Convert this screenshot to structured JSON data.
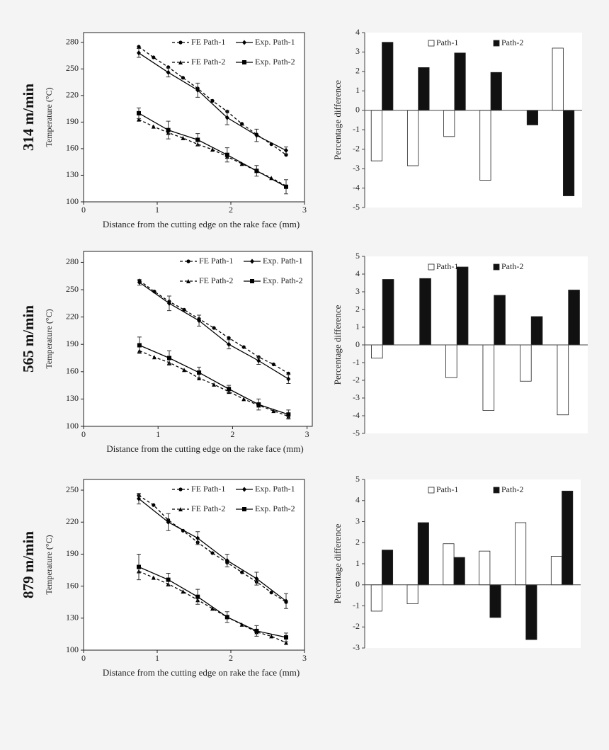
{
  "chart_data": [
    {
      "type": "line",
      "title": "314 m/min",
      "xlabel": "Distance from the cutting edge on the rake face (mm)",
      "ylabel": "Temperature (°C)",
      "xlim": [
        0,
        3
      ],
      "xticks": [
        0,
        1,
        2,
        3
      ],
      "ylim": [
        100,
        291
      ],
      "yticks": [
        100,
        130,
        160,
        190,
        220,
        250,
        280
      ],
      "series": [
        {
          "name": "FE Path-1",
          "color": "#000000",
          "line_style": "dashed",
          "marker": "circle",
          "x": [
            0.75,
            0.95,
            1.15,
            1.35,
            1.55,
            1.75,
            1.95,
            2.15,
            2.35,
            2.55,
            2.75
          ],
          "values": [
            275,
            263,
            252,
            240,
            228,
            214,
            202,
            188,
            176,
            165,
            153
          ]
        },
        {
          "name": "Exp. Path-1",
          "color": "#000000",
          "line_style": "solid",
          "marker": "diamond",
          "x": [
            0.75,
            1.15,
            1.55,
            1.95,
            2.35,
            2.75
          ],
          "values": [
            268,
            246,
            226,
            195,
            175,
            158
          ],
          "errors": [
            5,
            5,
            8,
            8,
            7,
            4
          ]
        },
        {
          "name": "FE Path-2",
          "color": "#000000",
          "line_style": "dashed",
          "marker": "triangle",
          "x": [
            0.75,
            0.95,
            1.15,
            1.35,
            1.55,
            1.75,
            1.95,
            2.15,
            2.35,
            2.55,
            2.75
          ],
          "values": [
            193,
            185,
            178,
            172,
            165,
            159,
            151,
            143,
            135,
            127,
            118
          ]
        },
        {
          "name": "Exp. Path-2",
          "color": "#000000",
          "line_style": "solid",
          "marker": "square",
          "x": [
            0.75,
            1.15,
            1.55,
            1.95,
            2.35,
            2.75
          ],
          "values": [
            200,
            181,
            170,
            153,
            135,
            117
          ],
          "errors": [
            6,
            10,
            7,
            8,
            6,
            8
          ]
        }
      ]
    },
    {
      "type": "bar",
      "ylabel": "Percentage difference",
      "ylim": [
        -5,
        4
      ],
      "yticks": [
        -5,
        -4,
        -3,
        -2,
        -1,
        0,
        1,
        2,
        3,
        4
      ],
      "series": [
        {
          "name": "Path-1",
          "color": "#ffffff",
          "values": [
            -2.6,
            -2.85,
            -1.35,
            -3.6,
            0,
            3.2
          ]
        },
        {
          "name": "Path-2",
          "color": "#111111",
          "values": [
            3.5,
            2.2,
            2.95,
            1.95,
            -0.75,
            -4.4
          ]
        }
      ]
    },
    {
      "type": "line",
      "title": "565 m/min",
      "xlabel": "Distance from the cutting edge on the rake face (mm)",
      "ylabel": "Temperature (°C)",
      "xlim": [
        0,
        3.07
      ],
      "xticks": [
        0,
        1,
        2,
        3
      ],
      "ylim": [
        100,
        292
      ],
      "yticks": [
        100,
        130,
        160,
        190,
        220,
        250,
        280
      ],
      "series": [
        {
          "name": "FE Path-1",
          "color": "#000000",
          "line_style": "dashed",
          "marker": "circle",
          "x": [
            0.75,
            0.95,
            1.15,
            1.35,
            1.55,
            1.75,
            1.95,
            2.15,
            2.35,
            2.55,
            2.75
          ],
          "values": [
            260,
            248,
            237,
            228,
            218,
            208,
            197,
            187,
            176,
            168,
            158
          ]
        },
        {
          "name": "Exp. Path-1",
          "color": "#000000",
          "line_style": "solid",
          "marker": "diamond",
          "x": [
            0.75,
            1.15,
            1.55,
            1.95,
            2.35,
            2.75
          ],
          "values": [
            258,
            235,
            216,
            190,
            172,
            152
          ],
          "errors": [
            3,
            8,
            6,
            5,
            4,
            5
          ]
        },
        {
          "name": "FE Path-2",
          "color": "#000000",
          "line_style": "dashed",
          "marker": "triangle",
          "x": [
            0.75,
            0.95,
            1.15,
            1.35,
            1.55,
            1.75,
            1.95,
            2.15,
            2.35,
            2.55,
            2.75
          ],
          "values": [
            183,
            176,
            170,
            162,
            153,
            146,
            138,
            130,
            123,
            117,
            111
          ]
        },
        {
          "name": "Exp. Path-2",
          "color": "#000000",
          "line_style": "solid",
          "marker": "square",
          "x": [
            0.75,
            1.15,
            1.55,
            1.95,
            2.35,
            2.75
          ],
          "values": [
            189,
            175,
            159,
            141,
            124,
            113
          ],
          "errors": [
            9,
            8,
            6,
            4,
            6,
            5
          ]
        }
      ]
    },
    {
      "type": "bar",
      "ylabel": "Percentage difference",
      "ylim": [
        -5,
        5
      ],
      "yticks": [
        -5,
        -4,
        -3,
        -2,
        -1,
        0,
        1,
        2,
        3,
        4,
        5
      ],
      "series": [
        {
          "name": "Path-1",
          "color": "#ffffff",
          "values": [
            -0.75,
            0,
            -1.85,
            -3.7,
            -2.05,
            -3.95
          ]
        },
        {
          "name": "Path-2",
          "color": "#111111",
          "values": [
            3.7,
            3.75,
            4.4,
            2.8,
            1.6,
            3.1
          ]
        }
      ]
    },
    {
      "type": "line",
      "title": "879 m/min",
      "xlabel": "Distance from the cutting edge on rake the face (mm)",
      "ylabel": "Temperature (°C)",
      "xlim": [
        0,
        3
      ],
      "xticks": [
        0,
        1,
        2,
        3
      ],
      "ylim": [
        100,
        260
      ],
      "yticks": [
        100,
        130,
        160,
        190,
        220,
        250
      ],
      "series": [
        {
          "name": "FE Path-1",
          "color": "#000000",
          "line_style": "dashed",
          "marker": "circle",
          "x": [
            0.75,
            0.95,
            1.15,
            1.35,
            1.55,
            1.75,
            1.95,
            2.15,
            2.35,
            2.55,
            2.75
          ],
          "values": [
            245,
            236,
            222,
            212,
            201,
            191,
            182,
            173,
            164,
            154,
            145
          ]
        },
        {
          "name": "Exp. Path-1",
          "color": "#000000",
          "line_style": "solid",
          "marker": "diamond",
          "x": [
            0.75,
            1.15,
            1.55,
            1.95,
            2.35,
            2.75
          ],
          "values": [
            242,
            220,
            205,
            184,
            167,
            146
          ],
          "errors": [
            5,
            8,
            6,
            6,
            6,
            7
          ]
        },
        {
          "name": "FE Path-2",
          "color": "#000000",
          "line_style": "dashed",
          "marker": "triangle",
          "x": [
            0.75,
            0.95,
            1.15,
            1.35,
            1.55,
            1.75,
            1.95,
            2.15,
            2.35,
            2.55,
            2.75
          ],
          "values": [
            174,
            168,
            162,
            155,
            147,
            139,
            131,
            124,
            117,
            113,
            107
          ]
        },
        {
          "name": "Exp. Path-2",
          "color": "#000000",
          "line_style": "solid",
          "marker": "square",
          "x": [
            0.75,
            1.15,
            1.55,
            1.95,
            2.35,
            2.75
          ],
          "values": [
            178,
            166,
            150,
            131,
            118,
            112
          ],
          "errors": [
            12,
            6,
            7,
            5,
            5,
            4
          ]
        }
      ]
    },
    {
      "type": "bar",
      "ylabel": "Percentage difference",
      "ylim": [
        -3,
        5
      ],
      "yticks": [
        -3,
        -2,
        -1,
        0,
        1,
        2,
        3,
        4,
        5
      ],
      "series": [
        {
          "name": "Path-1",
          "color": "#ffffff",
          "values": [
            -1.25,
            -0.9,
            1.95,
            1.6,
            2.95,
            1.35
          ]
        },
        {
          "name": "Path-2",
          "color": "#111111",
          "values": [
            1.65,
            2.95,
            1.3,
            -1.55,
            -2.6,
            4.45
          ]
        }
      ]
    }
  ]
}
